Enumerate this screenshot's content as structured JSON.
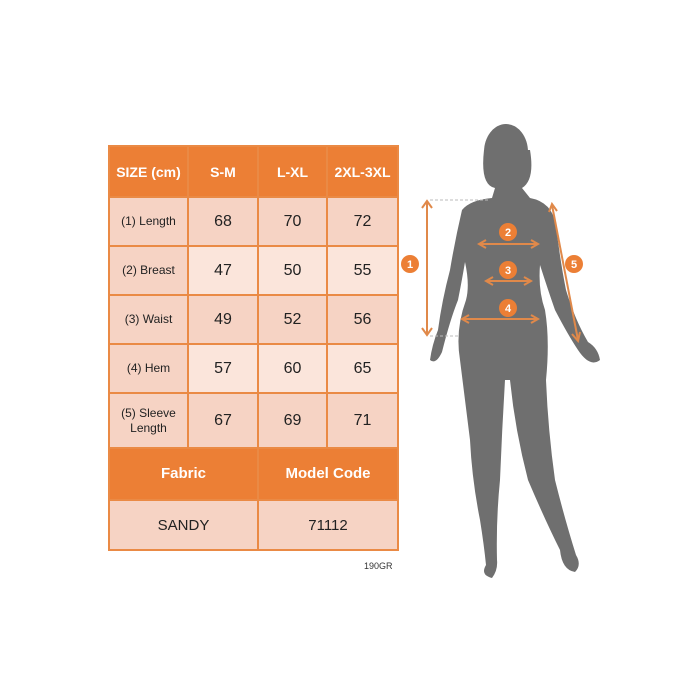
{
  "header": {
    "size_label": "SIZE (cm)",
    "sizes": [
      "S-M",
      "L-XL",
      "2XL-3XL"
    ]
  },
  "rows": [
    {
      "label": "(1) Length",
      "values": [
        "68",
        "70",
        "72"
      ]
    },
    {
      "label": "(2) Breast",
      "values": [
        "47",
        "50",
        "55"
      ]
    },
    {
      "label": "(3) Waist",
      "values": [
        "49",
        "52",
        "56"
      ]
    },
    {
      "label": "(4) Hem",
      "values": [
        "57",
        "60",
        "65"
      ]
    },
    {
      "label": "(5) Sleeve Length",
      "values": [
        "67",
        "69",
        "71"
      ]
    }
  ],
  "footer": {
    "fabric_label": "Fabric",
    "model_code_label": "Model Code",
    "fabric_value": "SANDY",
    "model_code_value": "71112"
  },
  "note": "190GR",
  "markers": [
    "1",
    "2",
    "3",
    "4",
    "5"
  ],
  "colors": {
    "accent": "#ec7f35",
    "row_dark": "#f6d3c4",
    "row_light": "#fbe5db",
    "figure": "#6f6f6f"
  }
}
